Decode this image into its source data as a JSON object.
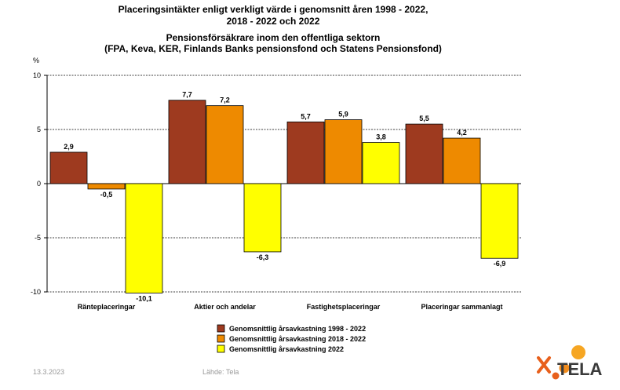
{
  "chart_data": {
    "type": "bar",
    "title": "Placeringsintäkter enligt verkligt värde i genomsnitt åren 1998 - 2022,",
    "title_line2": "2018 - 2022 och 2022",
    "subtitle": "Pensionsförsäkrare inom den offentliga sektorn",
    "subtitle_line2": "(FPA, Keva, KER, Finlands Banks pensionsfond och Statens Pensionsfond)",
    "ylabel": "%",
    "ylim": [
      -10,
      10
    ],
    "yticks": [
      10,
      5,
      0,
      -5,
      -10
    ],
    "grid": true,
    "legend_position": "bottom-center",
    "categories": [
      "Ränteplaceringar",
      "Aktier och andelar",
      "Fastighetsplaceringar",
      "Placeringar sammanlagt"
    ],
    "series": [
      {
        "name": "Genomsnittlig årsavkastning 1998 - 2022",
        "color": "#9e3a1f",
        "values": [
          2.9,
          7.7,
          5.7,
          5.5
        ],
        "labels": [
          "2,9",
          "7,7",
          "5,7",
          "5,5"
        ]
      },
      {
        "name": "Genomsnittlig årsavkastning 2018 - 2022",
        "color": "#ee8a00",
        "values": [
          -0.5,
          7.2,
          5.9,
          4.2
        ],
        "labels": [
          "-0,5",
          "7,2",
          "5,9",
          "4,2"
        ]
      },
      {
        "name": "Genomsnittlig årsavkastning 2022",
        "color": "#ffff00",
        "values": [
          -10.1,
          -6.3,
          3.8,
          -6.9
        ],
        "labels": [
          "-10,1",
          "-6,3",
          "3,8",
          "-6,9"
        ]
      }
    ]
  },
  "footer": {
    "date": "13.3.2023",
    "source": "Lähde: Tela",
    "logo_text": "TELA"
  }
}
